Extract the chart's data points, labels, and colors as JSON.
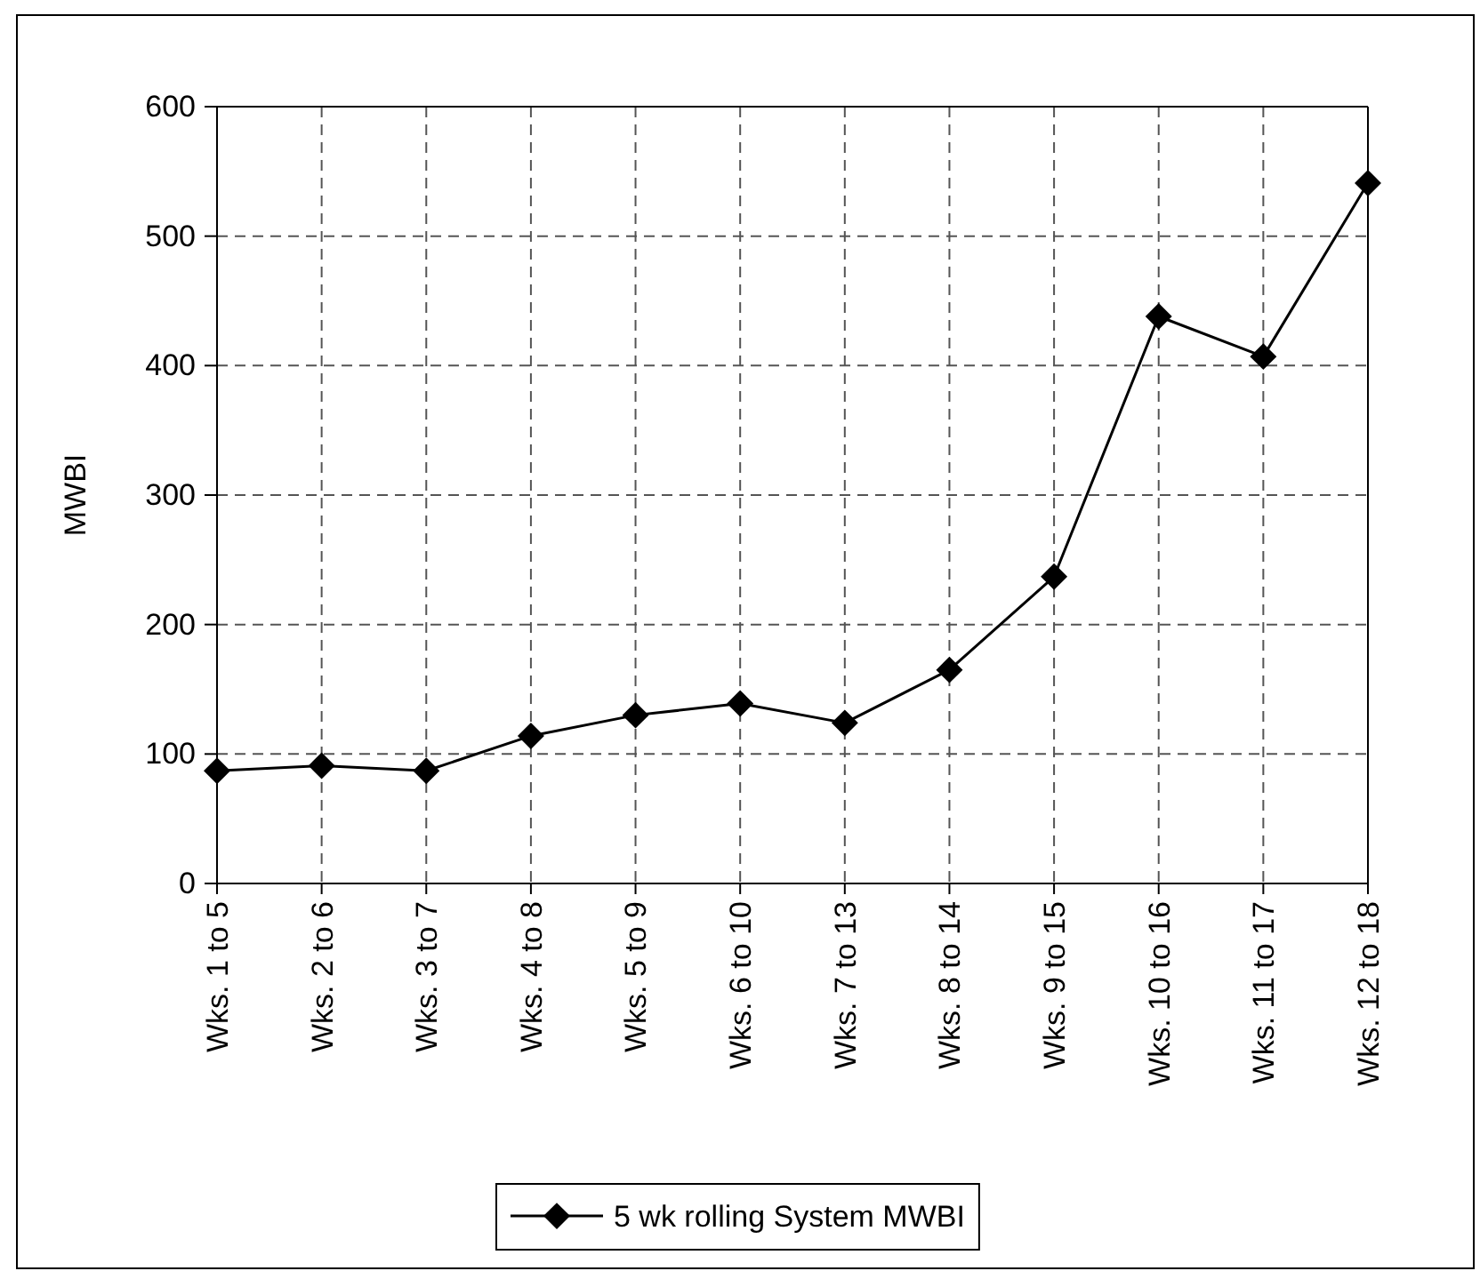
{
  "chart_data": {
    "type": "line",
    "ylabel": "MWBI",
    "categories": [
      "Wks. 1 to 5",
      "Wks. 2 to 6",
      "Wks. 3 to 7",
      "Wks. 4 to 8",
      "Wks. 5 to 9",
      "Wks. 6 to 10",
      "Wks. 7 to 13",
      "Wks. 8 to 14",
      "Wks. 9 to 15",
      "Wks. 10 to 16",
      "Wks. 11 to 17",
      "Wks. 12 to 18"
    ],
    "series": [
      {
        "name": "5 wk rolling System MWBI",
        "color": "#000000",
        "values": [
          87,
          91,
          87,
          114,
          130,
          139,
          124,
          165,
          237,
          438,
          407,
          541
        ]
      }
    ],
    "ylim": [
      0,
      600
    ],
    "yticks": [
      0,
      100,
      200,
      300,
      400,
      500,
      600
    ],
    "grid": true,
    "legend": "bottom",
    "marker": "diamond",
    "line_style": "solid"
  }
}
